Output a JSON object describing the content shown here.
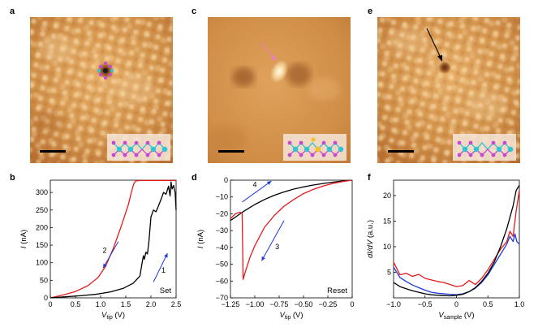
{
  "figure": {
    "panels": [
      {
        "letter": "a"
      },
      {
        "letter": "c"
      },
      {
        "letter": "e"
      },
      {
        "letter": "b"
      },
      {
        "letter": "d"
      },
      {
        "letter": "f"
      }
    ]
  },
  "colors": {
    "stm_base": "#d2924a",
    "stm_light": "#f4d3a1",
    "stm_dark": "#8c4a1c",
    "red": "#e41a1c",
    "blue": "#1f3bd8",
    "black": "#000000",
    "mo_atom": "#2ec4d4",
    "s_atom": "#c44ad0",
    "dopant": "#f2c12e"
  },
  "chart_data": [
    {
      "panel": "b",
      "type": "line",
      "xlabel_main": "V",
      "xlabel_sub": "tip",
      "xlabel_unit": " (V)",
      "ylabel_main": "I",
      "ylabel_unit": " (nA)",
      "xlim": [
        0,
        2.5
      ],
      "ylim": [
        0,
        335
      ],
      "xticks": [
        "0",
        "0.5",
        "1.0",
        "1.5",
        "2.0",
        "2.5"
      ],
      "xtick_values": [
        0,
        0.5,
        1.0,
        1.5,
        2.0,
        2.5
      ],
      "yticks": [
        "0",
        "50",
        "100",
        "150",
        "200",
        "250",
        "300"
      ],
      "ytick_values": [
        0,
        50,
        100,
        150,
        200,
        250,
        300
      ],
      "annotation": "Set",
      "arrow_labels": [
        "2",
        "1"
      ],
      "series": [
        {
          "name": "sweep 2",
          "color": "red",
          "x": [
            0,
            0.25,
            0.5,
            0.75,
            0.95,
            1.1,
            1.25,
            1.4,
            1.55,
            1.62,
            1.66,
            1.7,
            1.8,
            2.0,
            2.2,
            2.5
          ],
          "y": [
            0,
            8,
            18,
            35,
            58,
            90,
            140,
            200,
            265,
            305,
            325,
            333,
            334,
            334,
            334,
            334
          ]
        },
        {
          "name": "sweep 1",
          "color": "black",
          "x": [
            0,
            0.3,
            0.6,
            0.9,
            1.2,
            1.45,
            1.65,
            1.78,
            1.82,
            1.85,
            1.87,
            1.9,
            1.93,
            1.96,
            2.0,
            2.05,
            2.1,
            2.15,
            2.2,
            2.25,
            2.3,
            2.35,
            2.38,
            2.4,
            2.42,
            2.45,
            2.48,
            2.5
          ],
          "y": [
            0,
            3,
            6,
            10,
            17,
            27,
            42,
            62,
            95,
            120,
            110,
            130,
            125,
            160,
            230,
            250,
            245,
            262,
            280,
            300,
            295,
            318,
            290,
            330,
            310,
            320,
            300,
            250
          ]
        }
      ]
    },
    {
      "panel": "d",
      "type": "line",
      "xlabel_main": "V",
      "xlabel_sub": "tip",
      "xlabel_unit": " (V)",
      "ylabel_main": "I",
      "ylabel_unit": " (nA)",
      "xlim": [
        -1.25,
        0
      ],
      "ylim": [
        -70,
        0
      ],
      "xticks": [
        "−1.25",
        "−1.00",
        "−0.75",
        "−0.50",
        "−0.25",
        "0"
      ],
      "xtick_values": [
        -1.25,
        -1.0,
        -0.75,
        -0.5,
        -0.25,
        0
      ],
      "yticks": [
        "0",
        "−10",
        "−20",
        "−30",
        "−40",
        "−50",
        "−60",
        "−70"
      ],
      "ytick_values": [
        0,
        -10,
        -20,
        -30,
        -40,
        -50,
        -60,
        -70
      ],
      "annotation": "Reset",
      "arrow_labels": [
        "4",
        "3"
      ],
      "series": [
        {
          "name": "sweep 4",
          "color": "black",
          "x": [
            -1.25,
            -1.2,
            -1.15,
            -1.1,
            -1.0,
            -0.9,
            -0.8,
            -0.7,
            -0.6,
            -0.5,
            -0.4,
            -0.3,
            -0.2,
            -0.1,
            0
          ],
          "y": [
            -24,
            -22,
            -20,
            -18,
            -14.5,
            -11.5,
            -9,
            -7,
            -5.3,
            -4,
            -2.9,
            -2,
            -1.2,
            -0.5,
            0
          ]
        },
        {
          "name": "sweep 3",
          "color": "red",
          "x": [
            -1.25,
            -1.2,
            -1.15,
            -1.13,
            -1.12,
            -1.1,
            -1.05,
            -1.0,
            -0.9,
            -0.8,
            -0.7,
            -0.6,
            -0.5,
            -0.4,
            -0.3,
            -0.2,
            -0.1,
            0
          ],
          "y": [
            -23,
            -20,
            -19,
            -20,
            -59,
            -55,
            -46,
            -39,
            -28,
            -21,
            -15.5,
            -11.5,
            -8,
            -5.5,
            -3.5,
            -2,
            -0.8,
            0
          ]
        }
      ]
    },
    {
      "panel": "f",
      "type": "line",
      "xlabel_main": "V",
      "xlabel_sub": "sample",
      "xlabel_unit": " (V)",
      "ylabel_main": "dI/dV",
      "ylabel_unit": " (a.u.)",
      "xlim": [
        -1.0,
        1.0
      ],
      "ylim": [
        0,
        23
      ],
      "xticks": [
        "−1.0",
        "−0.5",
        "0",
        "0.5",
        "1.0"
      ],
      "xtick_values": [
        -1.0,
        -0.5,
        0,
        0.5,
        1.0
      ],
      "yticks": [
        "5",
        "10",
        "15",
        "20"
      ],
      "ytick_values": [
        5,
        10,
        15,
        20
      ],
      "series": [
        {
          "name": "blue",
          "color": "blue",
          "x": [
            -1.0,
            -0.9,
            -0.8,
            -0.7,
            -0.6,
            -0.5,
            -0.4,
            -0.3,
            -0.2,
            -0.1,
            0,
            0.1,
            0.2,
            0.3,
            0.4,
            0.5,
            0.6,
            0.7,
            0.8,
            0.85,
            0.9,
            0.93,
            0.96,
            1.0
          ],
          "y": [
            6,
            4,
            3.2,
            2.5,
            2.0,
            1.5,
            1.1,
            0.9,
            0.8,
            0.7,
            0.6,
            0.8,
            1.2,
            1.9,
            3.0,
            4.5,
            6.5,
            8.5,
            10.5,
            12,
            11,
            12.5,
            11,
            10.5
          ]
        },
        {
          "name": "red",
          "color": "red",
          "x": [
            -1.0,
            -0.9,
            -0.8,
            -0.7,
            -0.6,
            -0.5,
            -0.4,
            -0.3,
            -0.2,
            -0.1,
            0,
            0.1,
            0.2,
            0.3,
            0.4,
            0.5,
            0.6,
            0.7,
            0.8,
            0.85,
            0.9,
            0.95,
            1.0
          ],
          "y": [
            7,
            4.5,
            4.8,
            4.2,
            4.6,
            3.8,
            3.5,
            3.2,
            3.0,
            2.6,
            2.2,
            2.4,
            3.4,
            2.6,
            3.8,
            5.5,
            7.5,
            9.5,
            11,
            13,
            12,
            17,
            21
          ]
        },
        {
          "name": "black",
          "color": "black",
          "x": [
            -1.0,
            -0.9,
            -0.8,
            -0.7,
            -0.6,
            -0.5,
            -0.4,
            -0.3,
            -0.2,
            -0.1,
            0,
            0.1,
            0.2,
            0.3,
            0.4,
            0.5,
            0.6,
            0.7,
            0.8,
            0.9,
            0.95,
            1.0
          ],
          "y": [
            3,
            2.2,
            1.8,
            1.4,
            1.1,
            0.8,
            0.6,
            0.5,
            0.45,
            0.4,
            0.5,
            0.7,
            1.2,
            2.0,
            3.2,
            4.8,
            7.0,
            10,
            13.5,
            18,
            21,
            22
          ]
        }
      ]
    }
  ]
}
